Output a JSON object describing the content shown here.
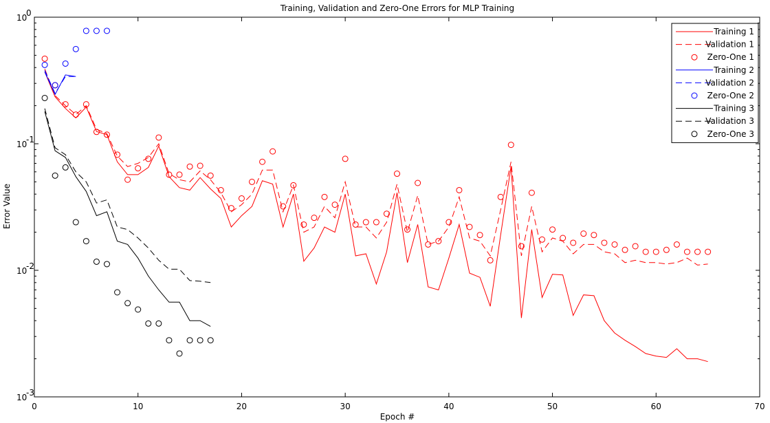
{
  "chart_data": {
    "type": "line",
    "title": "Training, Validation and Zero-One Errors for MLP Training",
    "xlabel": "Epoch #",
    "ylabel": "Error Value",
    "xlim": [
      0,
      70
    ],
    "ylim": [
      0.001,
      1
    ],
    "yscale": "log",
    "grid": false,
    "legend_position": "top-right",
    "x_ticks": [
      {
        "value": 0,
        "label": "0"
      },
      {
        "value": 10,
        "label": "10"
      },
      {
        "value": 20,
        "label": "20"
      },
      {
        "value": 30,
        "label": "30"
      },
      {
        "value": 40,
        "label": "40"
      },
      {
        "value": 50,
        "label": "50"
      },
      {
        "value": 60,
        "label": "60"
      },
      {
        "value": 70,
        "label": "70"
      }
    ],
    "y_ticks": [
      {
        "value": 1,
        "base": "10",
        "exp": "0"
      },
      {
        "value": 0.1,
        "base": "10",
        "exp": "-1"
      },
      {
        "value": 0.01,
        "base": "10",
        "exp": "-2"
      },
      {
        "value": 0.001,
        "base": "10",
        "exp": "-3"
      }
    ],
    "series": [
      {
        "name": "Training 1",
        "color": "#ff0000",
        "style": "solid",
        "x": [
          1,
          2,
          3,
          4,
          5,
          6,
          7,
          8,
          9,
          10,
          11,
          12,
          13,
          14,
          15,
          16,
          17,
          18,
          19,
          20,
          21,
          22,
          23,
          24,
          25,
          26,
          27,
          28,
          29,
          30,
          31,
          32,
          33,
          34,
          35,
          36,
          37,
          38,
          39,
          40,
          41,
          42,
          43,
          44,
          45,
          46,
          47,
          48,
          49,
          50,
          51,
          52,
          53,
          54,
          55,
          56,
          57,
          58,
          59,
          60,
          61,
          62,
          63,
          64,
          65
        ],
        "y": [
          0.37,
          0.235,
          0.19,
          0.16,
          0.195,
          0.125,
          0.118,
          0.072,
          0.057,
          0.057,
          0.065,
          0.096,
          0.055,
          0.045,
          0.043,
          0.054,
          0.044,
          0.037,
          0.022,
          0.027,
          0.032,
          0.051,
          0.048,
          0.022,
          0.04,
          0.0118,
          0.015,
          0.022,
          0.02,
          0.04,
          0.013,
          0.0135,
          0.0078,
          0.014,
          0.041,
          0.0115,
          0.023,
          0.0074,
          0.007,
          0.0125,
          0.023,
          0.0095,
          0.0088,
          0.0052,
          0.019,
          0.066,
          0.0042,
          0.021,
          0.0061,
          0.0093,
          0.0092,
          0.0044,
          0.0064,
          0.0063,
          0.004,
          0.0032,
          0.0028,
          0.0025,
          0.0022,
          0.0021,
          0.00205,
          0.0024,
          0.002,
          0.002,
          0.0019
        ]
      },
      {
        "name": "Validation 1",
        "color": "#ff0000",
        "style": "dashed",
        "x": [
          1,
          2,
          3,
          4,
          5,
          6,
          7,
          8,
          9,
          10,
          11,
          12,
          13,
          14,
          15,
          16,
          17,
          18,
          19,
          20,
          21,
          22,
          23,
          24,
          25,
          26,
          27,
          28,
          29,
          30,
          31,
          32,
          33,
          34,
          35,
          36,
          37,
          38,
          39,
          40,
          41,
          42,
          43,
          44,
          45,
          46,
          47,
          48,
          49,
          50,
          51,
          52,
          53,
          54,
          55,
          56,
          57,
          58,
          59,
          60,
          61,
          62,
          63,
          64,
          65
        ],
        "y": [
          0.39,
          0.24,
          0.2,
          0.17,
          0.2,
          0.13,
          0.12,
          0.08,
          0.066,
          0.07,
          0.078,
          0.1,
          0.058,
          0.052,
          0.05,
          0.061,
          0.052,
          0.041,
          0.029,
          0.033,
          0.04,
          0.062,
          0.062,
          0.029,
          0.047,
          0.02,
          0.022,
          0.032,
          0.026,
          0.05,
          0.022,
          0.022,
          0.018,
          0.024,
          0.048,
          0.02,
          0.039,
          0.016,
          0.017,
          0.022,
          0.038,
          0.018,
          0.017,
          0.013,
          0.03,
          0.072,
          0.013,
          0.032,
          0.014,
          0.018,
          0.017,
          0.0135,
          0.016,
          0.016,
          0.014,
          0.0135,
          0.0115,
          0.012,
          0.0115,
          0.0115,
          0.0112,
          0.0115,
          0.0125,
          0.011,
          0.0112
        ]
      },
      {
        "name": "Zero-One 1",
        "color": "#ff0000",
        "style": "markers",
        "x": [
          1,
          2,
          3,
          4,
          5,
          6,
          7,
          8,
          9,
          10,
          11,
          12,
          13,
          14,
          15,
          16,
          17,
          18,
          19,
          20,
          21,
          22,
          23,
          24,
          25,
          26,
          27,
          28,
          29,
          30,
          31,
          32,
          33,
          34,
          35,
          36,
          37,
          38,
          39,
          40,
          41,
          42,
          43,
          44,
          45,
          46,
          47,
          48,
          49,
          50,
          51,
          52,
          53,
          54,
          55,
          56,
          57,
          58,
          59,
          60,
          61,
          62,
          63,
          64,
          65
        ],
        "y": [
          0.47,
          0.29,
          0.205,
          0.17,
          0.205,
          0.124,
          0.118,
          0.082,
          0.052,
          0.064,
          0.076,
          0.112,
          0.057,
          0.057,
          0.066,
          0.067,
          0.056,
          0.043,
          0.031,
          0.037,
          0.05,
          0.072,
          0.087,
          0.032,
          0.047,
          0.023,
          0.026,
          0.038,
          0.033,
          0.076,
          0.023,
          0.024,
          0.024,
          0.028,
          0.058,
          0.021,
          0.049,
          0.016,
          0.017,
          0.024,
          0.043,
          0.022,
          0.019,
          0.012,
          0.038,
          0.098,
          0.0155,
          0.041,
          0.0175,
          0.021,
          0.018,
          0.0165,
          0.0195,
          0.019,
          0.0165,
          0.016,
          0.0145,
          0.0155,
          0.014,
          0.014,
          0.0145,
          0.016,
          0.014,
          0.014,
          0.014
        ]
      },
      {
        "name": "Training 2",
        "color": "#0000ff",
        "style": "solid",
        "x": [
          1,
          2,
          3,
          4
        ],
        "y": [
          0.37,
          0.245,
          0.35,
          0.34
        ]
      },
      {
        "name": "Validation 2",
        "color": "#0000ff",
        "style": "dashed",
        "x": [
          1,
          2,
          3,
          4
        ],
        "y": [
          0.38,
          0.25,
          0.34,
          0.34
        ]
      },
      {
        "name": "Zero-One 2",
        "color": "#0000ff",
        "style": "markers",
        "x": [
          1,
          2,
          3,
          4,
          5,
          6,
          7
        ],
        "y": [
          0.42,
          0.29,
          0.43,
          0.56,
          0.78,
          0.78,
          0.78
        ]
      },
      {
        "name": "Training 3",
        "color": "#000000",
        "style": "solid",
        "x": [
          1,
          2,
          3,
          4,
          5,
          6,
          7,
          8,
          9,
          10,
          11,
          12,
          13,
          14,
          15,
          16,
          17
        ],
        "y": [
          0.18,
          0.088,
          0.078,
          0.055,
          0.042,
          0.027,
          0.029,
          0.017,
          0.016,
          0.0125,
          0.009,
          0.007,
          0.0056,
          0.0056,
          0.004,
          0.004,
          0.0036
        ]
      },
      {
        "name": "Validation 3",
        "color": "#000000",
        "style": "dashed",
        "x": [
          1,
          2,
          3,
          4,
          5,
          6,
          7,
          8,
          9,
          10,
          11,
          12,
          13,
          14,
          15,
          16,
          17
        ],
        "y": [
          0.19,
          0.093,
          0.082,
          0.06,
          0.05,
          0.034,
          0.036,
          0.022,
          0.021,
          0.018,
          0.015,
          0.012,
          0.0102,
          0.0102,
          0.0083,
          0.0082,
          0.008
        ]
      },
      {
        "name": "Zero-One 3",
        "color": "#000000",
        "style": "markers",
        "x": [
          1,
          2,
          3,
          4,
          5,
          6,
          7,
          8,
          9,
          10,
          11,
          12,
          13,
          14,
          15,
          16,
          17
        ],
        "y": [
          0.23,
          0.056,
          0.065,
          0.024,
          0.017,
          0.0117,
          0.0112,
          0.0067,
          0.0055,
          0.0049,
          0.0038,
          0.0038,
          0.0028,
          0.0022,
          0.0028,
          0.0028,
          0.0028
        ]
      }
    ]
  }
}
